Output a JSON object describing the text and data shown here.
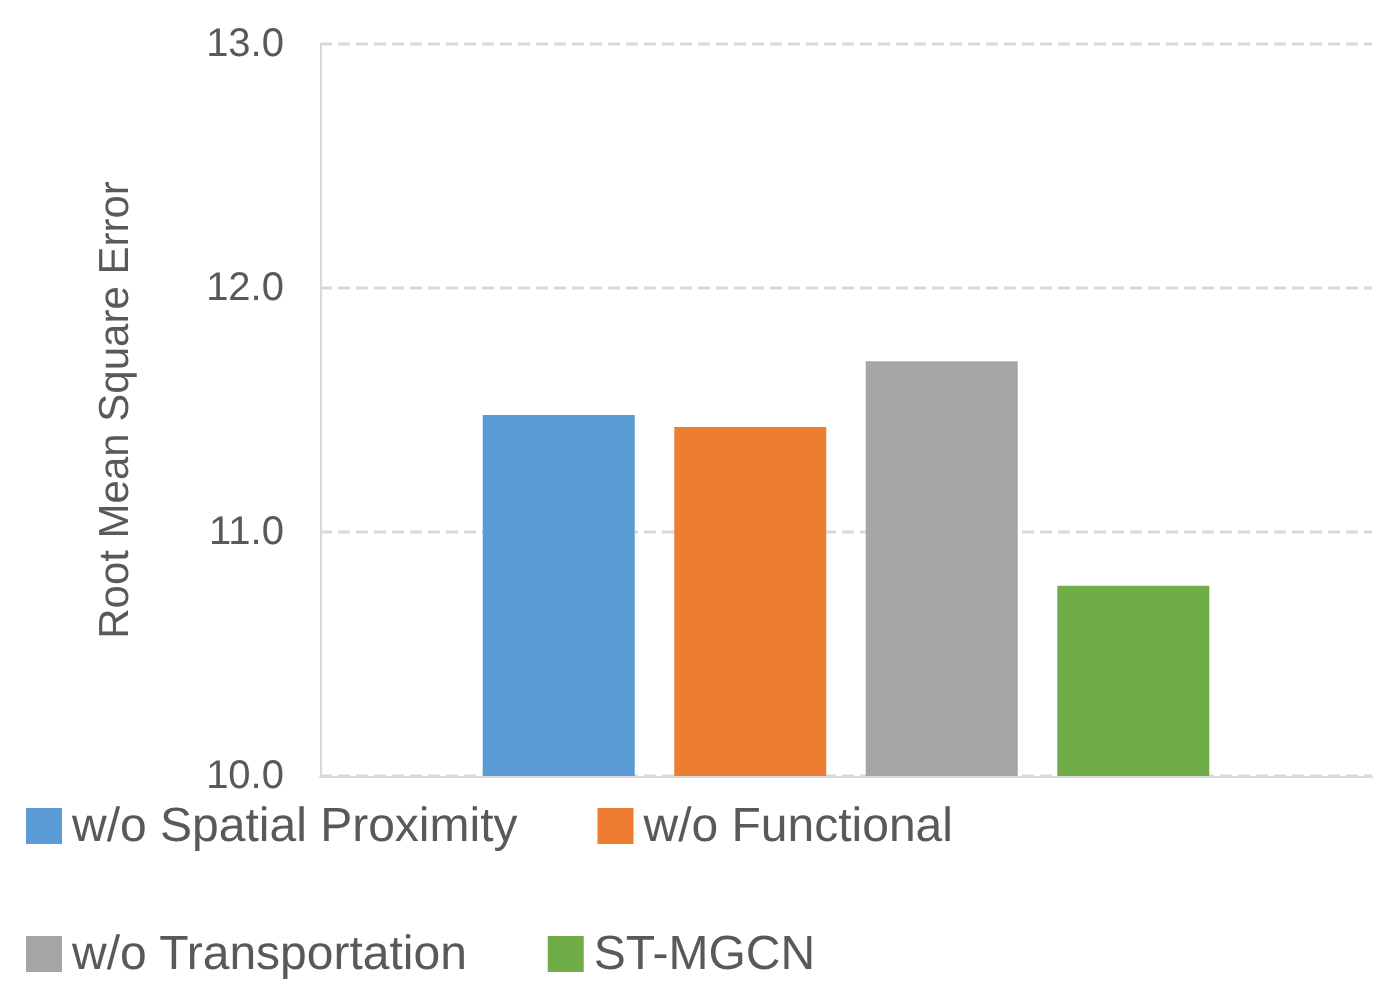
{
  "chart_data": {
    "type": "bar",
    "ylabel": "Root Mean Square Error",
    "categories": [
      null
    ],
    "series": [
      {
        "name": "w/o Spatial Proximity",
        "color": "#5b9bd5",
        "values": [
          11.48
        ]
      },
      {
        "name": "w/o Functional",
        "color": "#ed7d31",
        "values": [
          11.43
        ]
      },
      {
        "name": "w/o Transportation",
        "color": "#a5a5a5",
        "values": [
          11.7
        ]
      },
      {
        "name": "ST-MGCN",
        "color": "#70ad47",
        "values": [
          10.78
        ]
      }
    ],
    "ylim": [
      10,
      13
    ],
    "yticks": [
      {
        "value": 10,
        "label": "10.0"
      },
      {
        "value": 11,
        "label": "11.0"
      },
      {
        "value": 12,
        "label": "12.0"
      },
      {
        "value": 13,
        "label": "13.0"
      }
    ],
    "grid": "y",
    "legend": "bottom"
  }
}
